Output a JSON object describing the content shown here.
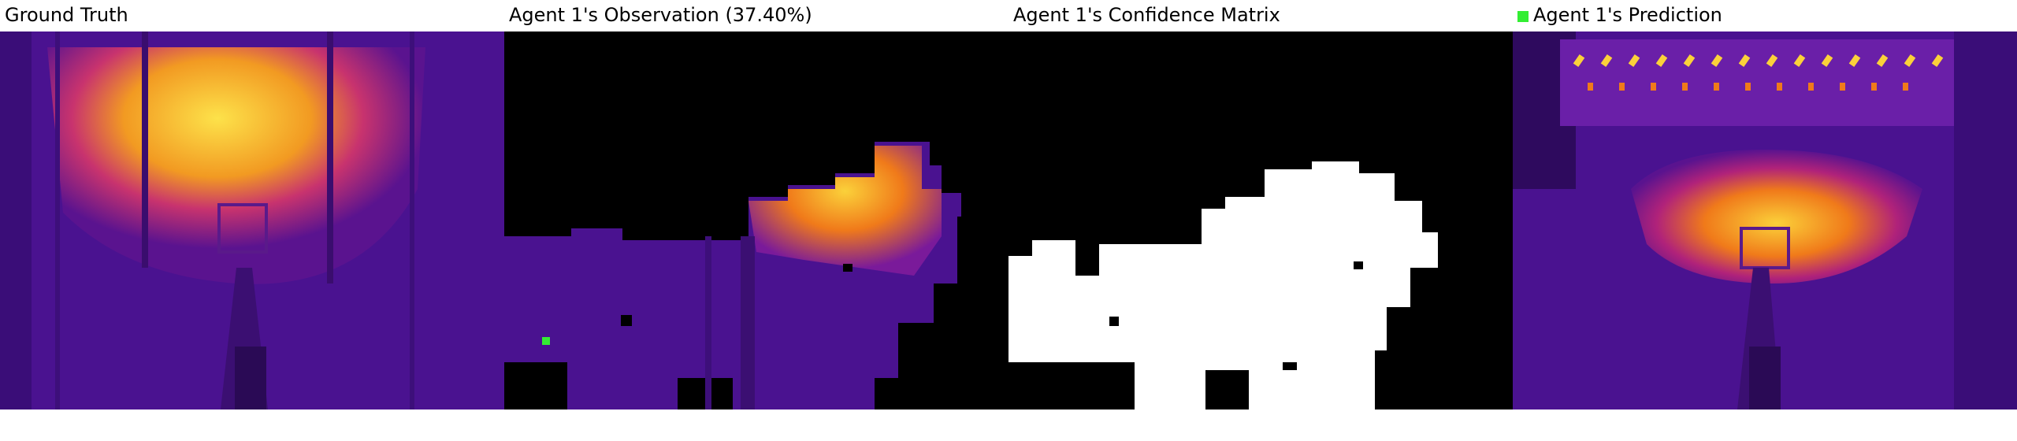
{
  "panels": [
    {
      "title": "Ground Truth"
    },
    {
      "title": "Agent 1's Observation (37.40%)"
    },
    {
      "title": "Agent 1's Confidence Matrix"
    },
    {
      "title": "Agent 1's Prediction"
    }
  ],
  "legend": {
    "color": "#33ee33"
  },
  "colors": {
    "background_purple": "#4a1290",
    "deep_purple": "#2e0a5e",
    "mid_purple": "#6a1fa8",
    "magenta": "#b0227a",
    "orange": "#f07a1a",
    "yellow": "#fbd13a",
    "white": "#ffffff",
    "black": "#000000"
  }
}
